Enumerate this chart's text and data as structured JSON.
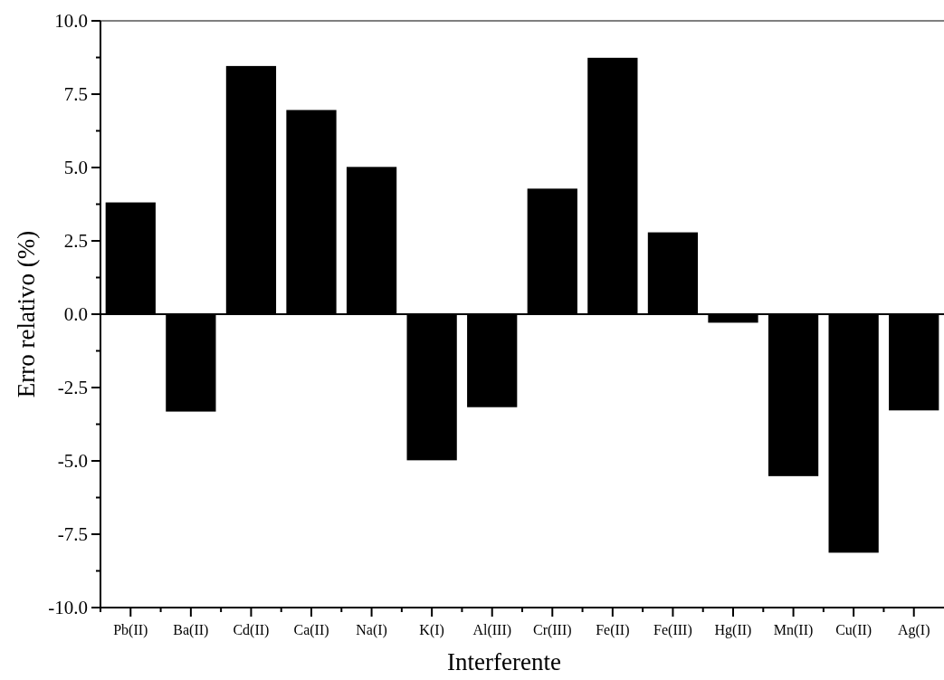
{
  "chart_data": {
    "type": "bar",
    "xlabel": "Interferente",
    "ylabel": "Erro relativo (%)",
    "categories": [
      "Pb(II)",
      "Ba(II)",
      "Cd(II)",
      "Ca(II)",
      "Na(I)",
      "K(I)",
      "Al(III)",
      "Cr(III)",
      "Fe(II)",
      "Fe(III)",
      "Hg(II)",
      "Mn(II)",
      "Cu(II)",
      "Ag(I)"
    ],
    "values": [
      3.81,
      -3.32,
      8.46,
      6.96,
      5.02,
      -4.98,
      -3.17,
      4.28,
      8.74,
      2.79,
      -0.29,
      -5.52,
      -8.13,
      -3.28
    ],
    "color": "#000000",
    "ylim": [
      -10,
      10
    ],
    "yticks": [
      {
        "value": -10,
        "label": "-10.0"
      },
      {
        "value": -7.5,
        "label": "-7.5"
      },
      {
        "value": -5,
        "label": "-5.0"
      },
      {
        "value": -2.5,
        "label": "-2.5"
      },
      {
        "value": 0,
        "label": "0.0"
      },
      {
        "value": 2.5,
        "label": "2.5"
      },
      {
        "value": 5,
        "label": "5.0"
      },
      {
        "value": 7.5,
        "label": "7.5"
      },
      {
        "value": 10,
        "label": "10.0"
      }
    ]
  }
}
